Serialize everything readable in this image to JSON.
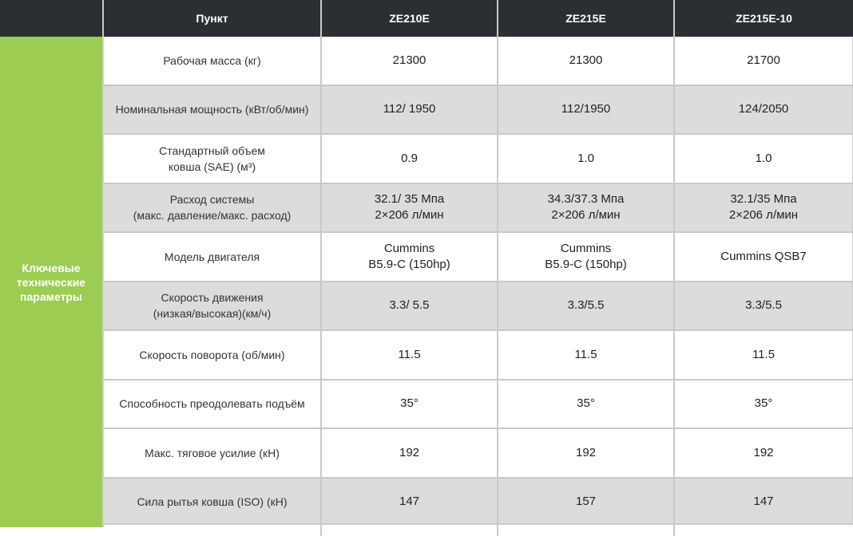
{
  "header": {
    "item": "Пункт",
    "models": [
      "ZE210E",
      "ZE215E",
      "ZE215E-10"
    ]
  },
  "side_label": "Ключевые\nтехнические\nпараметры",
  "rows": [
    {
      "label": "Рабочая масса (кг)",
      "values": [
        "21300",
        "21300",
        "21700"
      ]
    },
    {
      "label": "Номинальная мощность (кВт/об/мин)",
      "values": [
        "112/ 1950",
        "112/1950",
        "124/2050"
      ]
    },
    {
      "label": "Стандартный объем\nковша (SAE) (м³)",
      "values": [
        "0.9",
        "1.0",
        "1.0"
      ]
    },
    {
      "label": "Расход системы\n(макс. давление/макс. расход)",
      "values": [
        "32.1/ 35 Мпа\n2×206  л/мин",
        "34.3/37.3 Мпа\n2×206  л/мин",
        "32.1/35 Мпа\n2×206  л/мин"
      ]
    },
    {
      "label": "Модель двигателя",
      "values": [
        "Cummins\nB5.9-C (150hp)",
        "Cummins\nB5.9-C (150hp)",
        "Cummins QSB7"
      ]
    },
    {
      "label": "Скорость движения\n(низкая/высокая)(км/ч)",
      "values": [
        "3.3/ 5.5",
        "3.3/5.5",
        "3.3/5.5"
      ]
    },
    {
      "label": "Скорость поворота (об/мин)",
      "values": [
        "11.5",
        "11.5",
        "11.5"
      ]
    },
    {
      "label": "Способность преодолевать подъём",
      "values": [
        "35°",
        "35°",
        "35°"
      ]
    },
    {
      "label": "Макс. тяговое усилие (кН)",
      "values": [
        "192",
        "192",
        "192"
      ]
    },
    {
      "label": "Сила рытья ковша (ISO) (кН)",
      "values": [
        "147",
        "157",
        "147"
      ]
    }
  ]
}
